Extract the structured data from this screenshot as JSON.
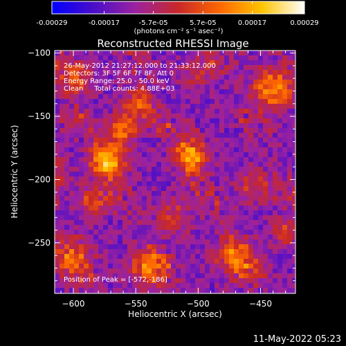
{
  "colorbar": {
    "tick_labels": [
      "-0.00029",
      "-0.00017",
      "-5.7e-05",
      "5.7e-05",
      "0.00017",
      "0.00029"
    ],
    "units_label": "(photons cm⁻² s⁻¹ asec⁻²)",
    "gradient_colors": [
      "#0000ff",
      "#4b0ec8",
      "#9b22a0",
      "#c82828",
      "#ff6a00",
      "#ffc400",
      "#ffffff"
    ]
  },
  "chart_data": {
    "type": "heatmap",
    "title": "Reconstructed RHESSI Image",
    "xlabel": "Heliocentric X (arcsec)",
    "ylabel": "Heliocentric Y (arcsec)",
    "xlim": [
      -615,
      -422
    ],
    "ylim": [
      -290,
      -98
    ],
    "x_ticks": [
      -600,
      -550,
      -500,
      -450
    ],
    "y_ticks": [
      -100,
      -150,
      -200,
      -250
    ],
    "x_tick_labels": [
      "−600",
      "−550",
      "−500",
      "−450"
    ],
    "y_tick_labels": [
      "−100",
      "−150",
      "−200",
      "−250"
    ],
    "value_range": [
      -0.00029,
      0.00029
    ],
    "peak_position": [
      -572,
      -186
    ],
    "annotations": [
      "26-May-2012 21:27:12.000 to 21:33:12.000",
      "Detectors: 3F 5F 6F 7F 8F, Att 0",
      "Energy Range: 25.0 - 50.0 keV",
      "Clean     Total counts: 4.88E+03"
    ],
    "peak_label": "Position of Peak = [-572,-186]"
  },
  "footer": {
    "timestamp": "11-May-2022 05:23"
  }
}
